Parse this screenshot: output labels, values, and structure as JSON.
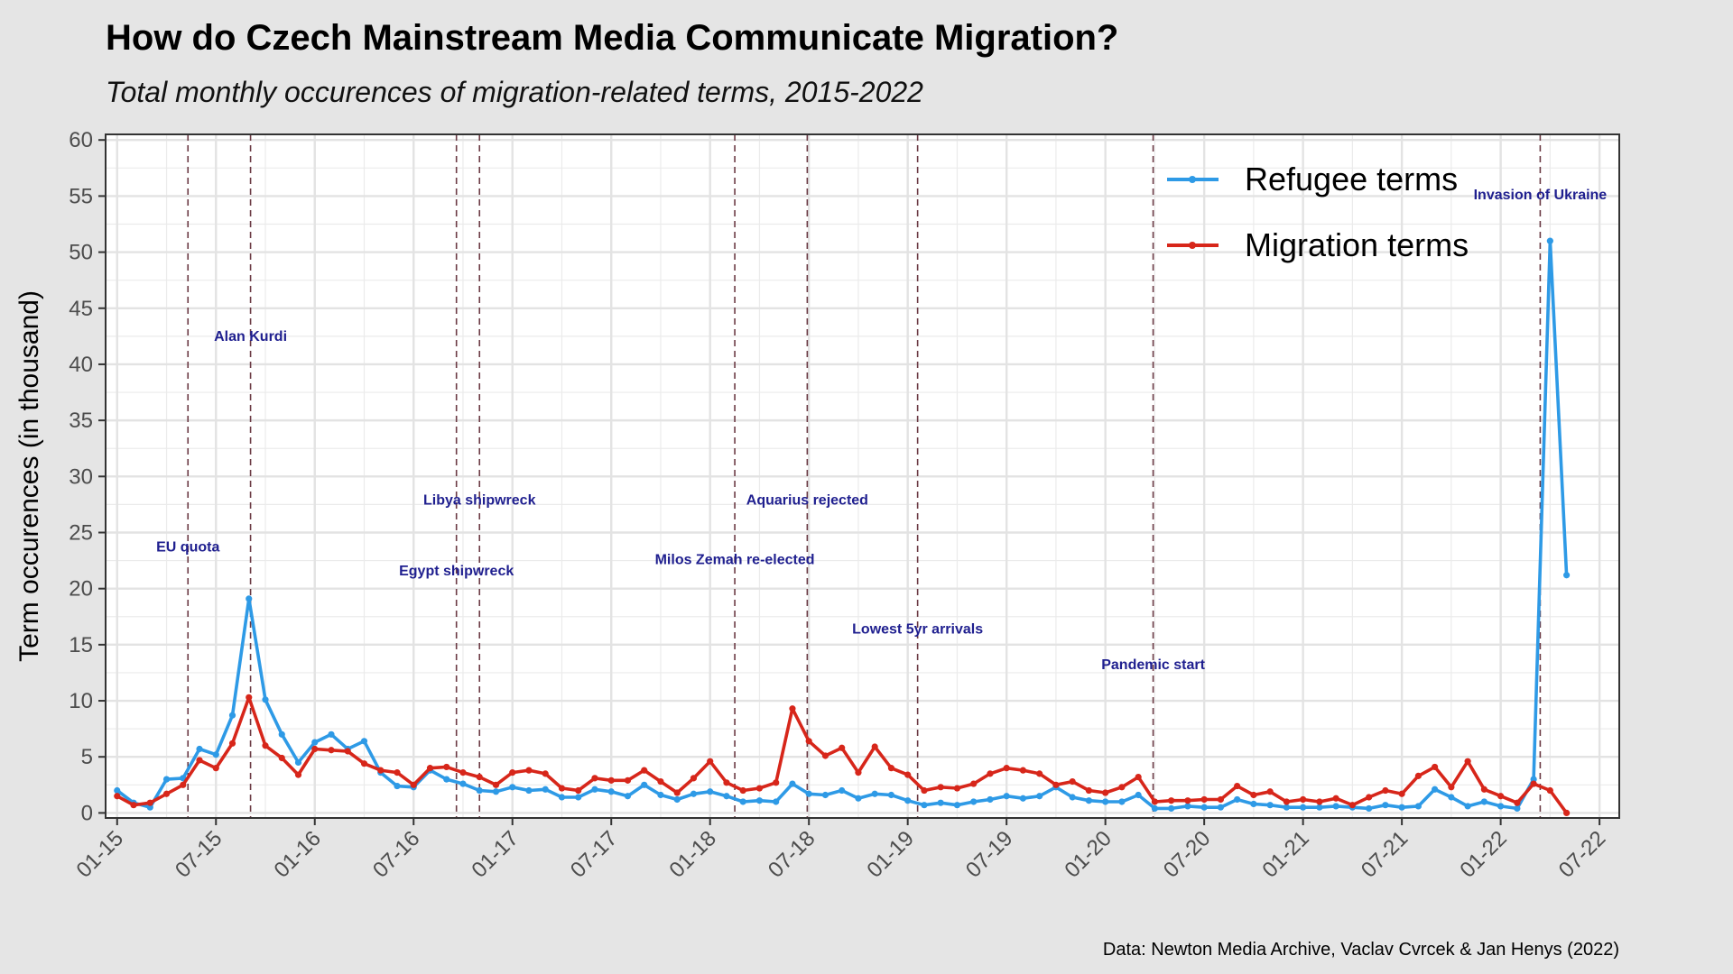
{
  "title": "How do Czech Mainstream Media Communicate Migration?",
  "subtitle": "Total monthly occurences of migration-related terms, 2015-2022",
  "caption": "Data: Newton Media Archive, Vaclav Cvrcek & Jan Henys (2022)",
  "colors": {
    "refugee": "#2e9ae6",
    "migration": "#d7261a",
    "annotation": "#1f1f8f",
    "event_line": "#6b3a44"
  },
  "chart_data": {
    "type": "line",
    "xlabel": "",
    "ylabel": "Term occurences (in thousand)",
    "x_start": "2015-01",
    "x": [
      "2015-01",
      "2015-02",
      "2015-03",
      "2015-04",
      "2015-05",
      "2015-06",
      "2015-07",
      "2015-08",
      "2015-09",
      "2015-10",
      "2015-11",
      "2015-12",
      "2016-01",
      "2016-02",
      "2016-03",
      "2016-04",
      "2016-05",
      "2016-06",
      "2016-07",
      "2016-08",
      "2016-09",
      "2016-10",
      "2016-11",
      "2016-12",
      "2017-01",
      "2017-02",
      "2017-03",
      "2017-04",
      "2017-05",
      "2017-06",
      "2017-07",
      "2017-08",
      "2017-09",
      "2017-10",
      "2017-11",
      "2017-12",
      "2018-01",
      "2018-02",
      "2018-03",
      "2018-04",
      "2018-05",
      "2018-06",
      "2018-07",
      "2018-08",
      "2018-09",
      "2018-10",
      "2018-11",
      "2018-12",
      "2019-01",
      "2019-02",
      "2019-03",
      "2019-04",
      "2019-05",
      "2019-06",
      "2019-07",
      "2019-08",
      "2019-09",
      "2019-10",
      "2019-11",
      "2019-12",
      "2020-01",
      "2020-02",
      "2020-03",
      "2020-04",
      "2020-05",
      "2020-06",
      "2020-07",
      "2020-08",
      "2020-09",
      "2020-10",
      "2020-11",
      "2020-12",
      "2021-01",
      "2021-02",
      "2021-03",
      "2021-04",
      "2021-05",
      "2021-06",
      "2021-07",
      "2021-08",
      "2021-09",
      "2021-10",
      "2021-11",
      "2021-12",
      "2022-01",
      "2022-02",
      "2022-03",
      "2022-04",
      "2022-05"
    ],
    "series": [
      {
        "name": "Refugee terms",
        "color": "#2e9ae6",
        "values": [
          2.0,
          0.9,
          0.5,
          3.0,
          3.1,
          5.7,
          5.2,
          8.7,
          19.1,
          10.1,
          7.0,
          4.5,
          6.3,
          7.0,
          5.7,
          6.4,
          3.6,
          2.4,
          2.3,
          3.8,
          3.0,
          2.6,
          2.0,
          1.9,
          2.3,
          2.0,
          2.1,
          1.4,
          1.4,
          2.1,
          1.9,
          1.5,
          2.5,
          1.6,
          1.2,
          1.7,
          1.9,
          1.5,
          1.0,
          1.1,
          1.0,
          2.6,
          1.7,
          1.6,
          2.0,
          1.3,
          1.7,
          1.6,
          1.1,
          0.7,
          0.9,
          0.7,
          1.0,
          1.2,
          1.5,
          1.3,
          1.5,
          2.3,
          1.4,
          1.1,
          1.0,
          1.0,
          1.6,
          0.4,
          0.4,
          0.6,
          0.5,
          0.5,
          1.2,
          0.8,
          0.7,
          0.5,
          0.5,
          0.5,
          0.6,
          0.5,
          0.4,
          0.7,
          0.5,
          0.6,
          2.1,
          1.4,
          0.6,
          1.0,
          0.6,
          0.4,
          3.0,
          51.0,
          21.2
        ]
      },
      {
        "name": "Migration terms",
        "color": "#d7261a",
        "values": [
          1.5,
          0.7,
          0.9,
          1.7,
          2.5,
          4.7,
          4.0,
          6.2,
          10.3,
          6.0,
          4.9,
          3.4,
          5.7,
          5.6,
          5.5,
          4.4,
          3.8,
          3.6,
          2.5,
          4.0,
          4.1,
          3.6,
          3.2,
          2.5,
          3.6,
          3.8,
          3.5,
          2.2,
          2.0,
          3.1,
          2.9,
          2.9,
          3.8,
          2.8,
          1.8,
          3.1,
          4.6,
          2.7,
          2.0,
          2.2,
          2.7,
          9.3,
          6.4,
          5.1,
          5.8,
          3.6,
          5.9,
          4.0,
          3.4,
          2.0,
          2.3,
          2.2,
          2.6,
          3.5,
          4.0,
          3.8,
          3.5,
          2.5,
          2.8,
          2.0,
          1.8,
          2.3,
          3.2,
          1.0,
          1.1,
          1.1,
          1.2,
          1.2,
          2.4,
          1.6,
          1.9,
          1.0,
          1.2,
          1.0,
          1.3,
          0.7,
          1.4,
          2.0,
          1.7,
          3.3,
          4.1,
          2.3,
          4.6,
          2.1,
          1.5,
          0.9,
          2.6,
          2.0,
          0.0
        ]
      }
    ],
    "x_ticks": [
      "01-15",
      "07-15",
      "01-16",
      "07-16",
      "01-17",
      "07-17",
      "01-18",
      "07-18",
      "01-19",
      "07-19",
      "01-20",
      "07-20",
      "01-21",
      "07-21",
      "01-22",
      "07-22"
    ],
    "y_ticks": [
      0,
      5,
      10,
      15,
      20,
      25,
      30,
      35,
      40,
      45,
      50,
      55,
      60
    ],
    "ylim": [
      0,
      60.5
    ],
    "legend_position": "top-right",
    "grid": true,
    "events": [
      {
        "label": "EU quota",
        "month_index": 4.3,
        "label_y": 23.3
      },
      {
        "label": "Alan Kurdi",
        "month_index": 8.1,
        "label_y": 42.1
      },
      {
        "label": "Libya shipwreck",
        "month_index": 22.0,
        "label_y": 27.5
      },
      {
        "label": "Egypt shipwreck",
        "month_index": 20.6,
        "label_y": 21.2
      },
      {
        "label": "Milos Zemah re-elected",
        "month_index": 37.5,
        "label_y": 22.2
      },
      {
        "label": "Aquarius rejected",
        "month_index": 41.9,
        "label_y": 27.5
      },
      {
        "label": "Lowest 5yr arrivals",
        "month_index": 48.6,
        "label_y": 16.0
      },
      {
        "label": "Pandemic start",
        "month_index": 62.9,
        "label_y": 12.8
      },
      {
        "label": "Invasion of Ukraine",
        "month_index": 86.4,
        "label_y": 54.7
      }
    ]
  }
}
